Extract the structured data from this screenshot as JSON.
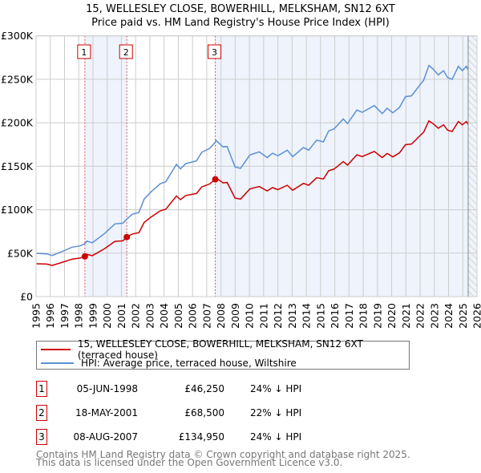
{
  "chart_data": {
    "type": "line",
    "title": "15, WELLESLEY CLOSE, BOWERHILL, MELKSHAM, SN12 6XT",
    "subtitle": "Price paid vs. HM Land Registry's House Price Index (HPI)",
    "xlim": [
      1995,
      2026
    ],
    "ylim": [
      0,
      300000
    ],
    "x_ticks": [
      "1995",
      "1996",
      "1997",
      "1998",
      "1999",
      "2000",
      "2001",
      "2002",
      "2003",
      "2004",
      "2005",
      "2006",
      "2007",
      "2008",
      "2009",
      "2010",
      "2011",
      "2012",
      "2013",
      "2014",
      "2015",
      "2016",
      "2017",
      "2018",
      "2019",
      "2020",
      "2021",
      "2022",
      "2023",
      "2024",
      "2025",
      "2026"
    ],
    "y_ticks": [
      {
        "value": 0,
        "label": "£0"
      },
      {
        "value": 50000,
        "label": "£50K"
      },
      {
        "value": 100000,
        "label": "£100K"
      },
      {
        "value": 150000,
        "label": "£150K"
      },
      {
        "value": 200000,
        "label": "£200K"
      },
      {
        "value": 250000,
        "label": "£250K"
      },
      {
        "value": 300000,
        "label": "£300K"
      }
    ],
    "grid": true,
    "hpi_data_end": 2025.38,
    "colors": {
      "property": "#cc0000",
      "hpi": "#5b8fd4",
      "shade": "#eef3fc",
      "grid": "#cccccc"
    },
    "series": [
      {
        "name": "15, WELLESLEY CLOSE, BOWERHILL, MELKSHAM, SN12 6XT (terraced house)",
        "key": "property",
        "x": [
          1995.04,
          1995.75,
          1996.13,
          1996.97,
          1997.54,
          1998.1,
          1998.43,
          1998.57,
          1998.95,
          1999.79,
          2000.54,
          2001.1,
          2001.38,
          2001.76,
          2002.23,
          2002.6,
          2003.08,
          2003.74,
          2004.12,
          2004.87,
          2005.15,
          2005.52,
          2006.27,
          2006.65,
          2007.21,
          2007.6,
          2007.64,
          2008.15,
          2008.43,
          2008.99,
          2009.37,
          2010.03,
          2010.69,
          2011.25,
          2011.63,
          2012,
          2012.66,
          2013.04,
          2013.8,
          2014.17,
          2014.73,
          2015.2,
          2015.57,
          2015.95,
          2016.6,
          2016.9,
          2017.1,
          2017.55,
          2017.93,
          2018.78,
          2019.34,
          2019.68,
          2020.08,
          2020.55,
          2020.97,
          2021.4,
          2021.87,
          2022.25,
          2022.62,
          2022.9,
          2023.28,
          2023.65,
          2023.93,
          2024.25,
          2024.69,
          2024.97,
          2025.25,
          2025.38
        ],
        "y": [
          37800,
          37400,
          35900,
          40100,
          43200,
          44400,
          46250,
          48600,
          47100,
          54900,
          63500,
          64200,
          68500,
          72000,
          73600,
          85300,
          91600,
          98800,
          100500,
          115700,
          111600,
          116300,
          118600,
          126200,
          129700,
          134950,
          136600,
          130900,
          131300,
          113300,
          112200,
          123900,
          126600,
          121600,
          125400,
          123100,
          128100,
          122400,
          130300,
          128100,
          136800,
          135300,
          144900,
          146700,
          155300,
          151200,
          154900,
          163100,
          161100,
          167000,
          160000,
          164700,
          160700,
          165400,
          174800,
          175600,
          183200,
          189200,
          202200,
          199100,
          193800,
          197600,
          191500,
          190000,
          201400,
          197600,
          201400,
          198100
        ]
      },
      {
        "name": "HPI: Average price, terraced house, Wiltshire",
        "key": "hpi",
        "x": [
          1995.04,
          1995.75,
          1996.13,
          1996.97,
          1997.54,
          1998.1,
          1998.43,
          1998.57,
          1998.95,
          1999.79,
          2000.54,
          2001.1,
          2001.38,
          2001.76,
          2002.23,
          2002.6,
          2003.08,
          2003.74,
          2004.12,
          2004.87,
          2005.15,
          2005.52,
          2006.27,
          2006.65,
          2007.21,
          2007.6,
          2007.64,
          2008.15,
          2008.43,
          2008.99,
          2009.37,
          2010.03,
          2010.69,
          2011.25,
          2011.63,
          2012,
          2012.66,
          2013.04,
          2013.8,
          2014.17,
          2014.73,
          2015.2,
          2015.57,
          2015.95,
          2016.6,
          2016.9,
          2017.1,
          2017.55,
          2017.93,
          2018.78,
          2019.34,
          2019.68,
          2020.08,
          2020.55,
          2020.97,
          2021.4,
          2021.87,
          2022.25,
          2022.62,
          2022.9,
          2023.28,
          2023.65,
          2023.93,
          2024.25,
          2024.69,
          2024.97,
          2025.25,
          2025.38
        ],
        "y": [
          49800,
          49200,
          47300,
          52800,
          56900,
          58400,
          61000,
          63900,
          62000,
          72200,
          83600,
          84500,
          89200,
          94700,
          96800,
          112200,
          120500,
          130000,
          132200,
          152200,
          146900,
          153000,
          156100,
          166000,
          170600,
          177500,
          179800,
          172200,
          172700,
          149100,
          147600,
          163000,
          166600,
          160000,
          165000,
          162000,
          168500,
          161000,
          171500,
          168500,
          180000,
          178000,
          190600,
          193000,
          204400,
          199000,
          203800,
          214600,
          212000,
          219800,
          210500,
          216700,
          211500,
          217600,
          230000,
          231000,
          241000,
          249000,
          266000,
          262000,
          255000,
          260000,
          252000,
          250000,
          265000,
          260000,
          265000,
          260700
        ]
      }
    ],
    "sales": [
      {
        "label": "1",
        "x": 1998.43,
        "y": 46250,
        "date": "05-JUN-1998",
        "price": "£46,250",
        "hpi": "24% ↓ HPI"
      },
      {
        "label": "2",
        "x": 2001.38,
        "y": 68500,
        "date": "18-MAY-2001",
        "price": "£68,500",
        "hpi": "22% ↓ HPI"
      },
      {
        "label": "3",
        "x": 2007.6,
        "y": 134950,
        "date": "08-AUG-2007",
        "price": "£134,950",
        "hpi": "24% ↓ HPI"
      }
    ],
    "shaded_ranges": [
      [
        1998.43,
        2001.38
      ],
      [
        2007.6,
        2026
      ]
    ],
    "legend": {
      "placement": "below",
      "items": [
        "15, WELLESLEY CLOSE, BOWERHILL, MELKSHAM, SN12 6XT (terraced house)",
        "HPI: Average price, terraced house, Wiltshire"
      ]
    }
  },
  "footer": {
    "line1": "Contains HM Land Registry data © Crown copyright and database right 2025.",
    "line2": "This data is licensed under the Open Government Licence v3.0."
  }
}
